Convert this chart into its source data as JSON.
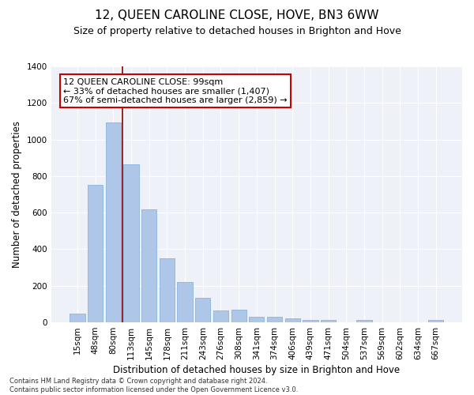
{
  "title": "12, QUEEN CAROLINE CLOSE, HOVE, BN3 6WW",
  "subtitle": "Size of property relative to detached houses in Brighton and Hove",
  "xlabel": "Distribution of detached houses by size in Brighton and Hove",
  "ylabel": "Number of detached properties",
  "categories": [
    "15sqm",
    "48sqm",
    "80sqm",
    "113sqm",
    "145sqm",
    "178sqm",
    "211sqm",
    "243sqm",
    "276sqm",
    "308sqm",
    "341sqm",
    "374sqm",
    "406sqm",
    "439sqm",
    "471sqm",
    "504sqm",
    "537sqm",
    "569sqm",
    "602sqm",
    "634sqm",
    "667sqm"
  ],
  "values": [
    48,
    750,
    1095,
    865,
    620,
    350,
    220,
    135,
    65,
    70,
    30,
    30,
    22,
    15,
    15,
    0,
    12,
    0,
    0,
    0,
    12
  ],
  "bar_color": "#aec6e8",
  "bar_edge_color": "#7aaddb",
  "vline_color": "#8b0000",
  "annotation_text": "12 QUEEN CAROLINE CLOSE: 99sqm\n← 33% of detached houses are smaller (1,407)\n67% of semi-detached houses are larger (2,859) →",
  "annotation_box_color": "#ffffff",
  "annotation_box_edge_color": "#cc0000",
  "ylim": [
    0,
    1400
  ],
  "yticks": [
    0,
    200,
    400,
    600,
    800,
    1000,
    1200,
    1400
  ],
  "bg_color": "#eef2f8",
  "grid_color": "#ffffff",
  "footnote": "Contains HM Land Registry data © Crown copyright and database right 2024.\nContains public sector information licensed under the Open Government Licence v3.0.",
  "title_fontsize": 11,
  "subtitle_fontsize": 9,
  "axis_label_fontsize": 8.5,
  "tick_fontsize": 7.5,
  "annotation_fontsize": 8
}
